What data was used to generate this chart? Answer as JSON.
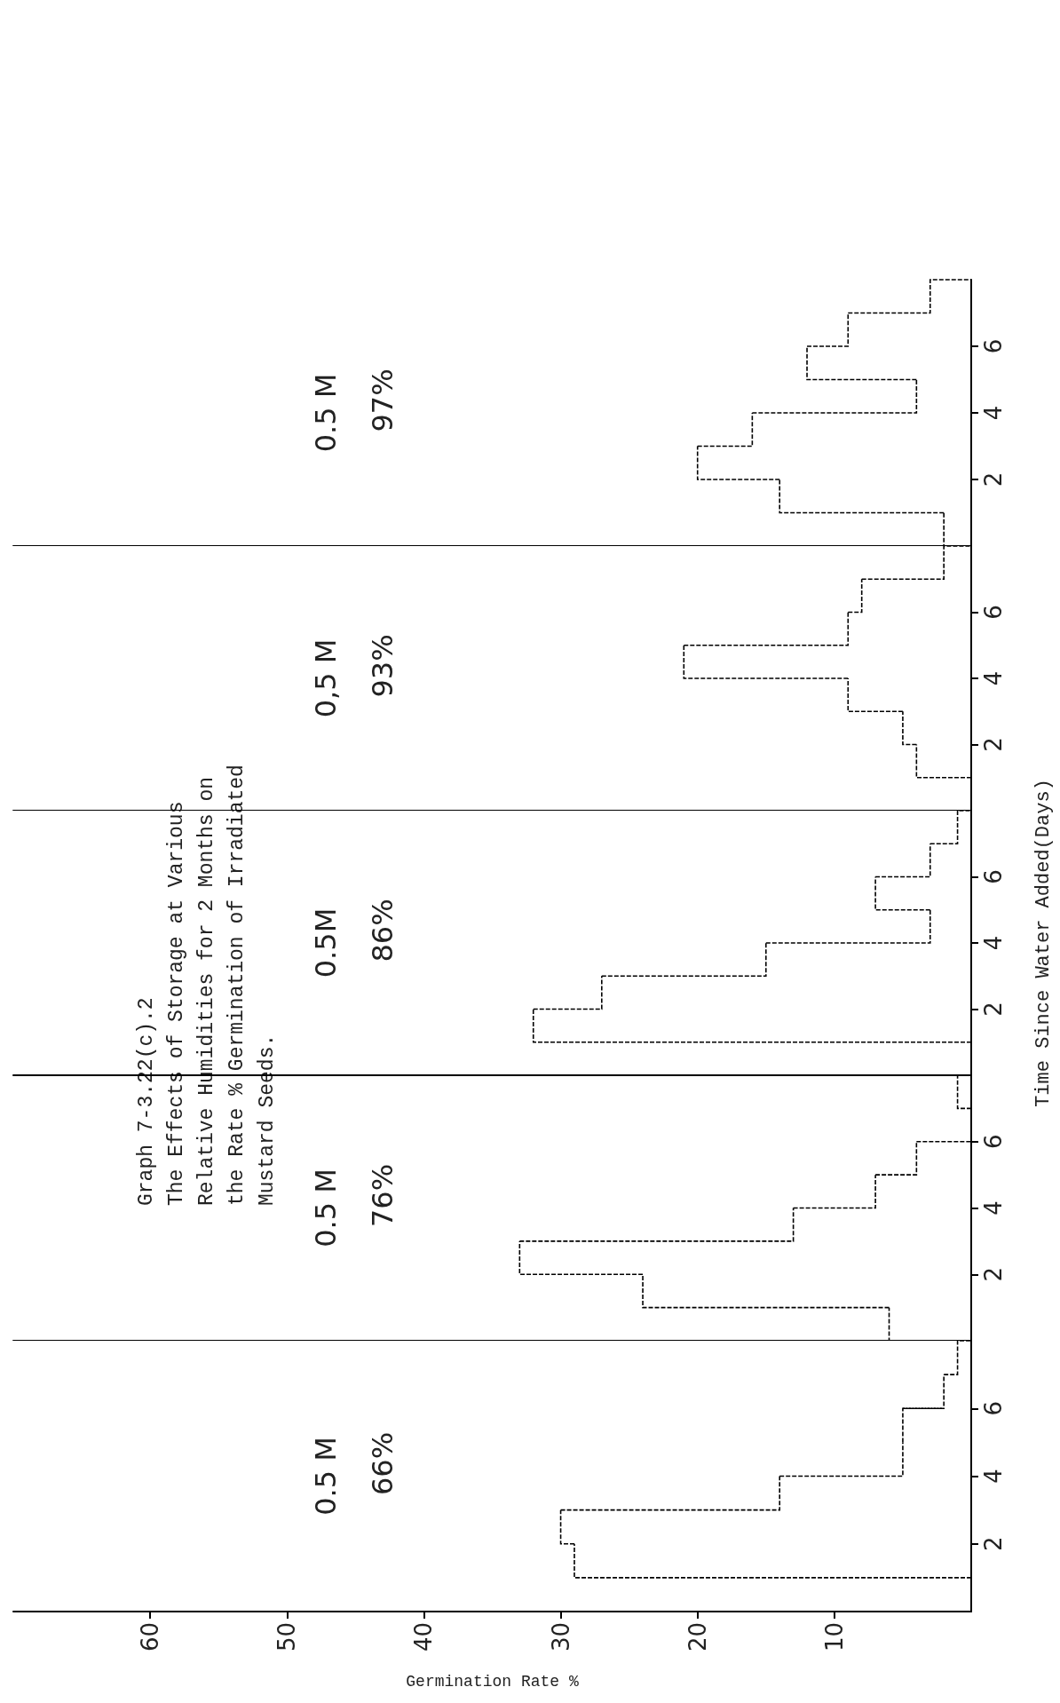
{
  "chart_data": [
    {
      "type": "histogram",
      "orientation": "horizontal",
      "xlabel": "Germination Rate %",
      "annotations": [
        "0.5 M",
        "66%"
      ],
      "bins": [
        1,
        2,
        3,
        4,
        5,
        6,
        7,
        8
      ],
      "values": [
        29,
        30,
        14,
        5,
        5,
        2,
        1
      ],
      "color": "#000000",
      "ylim": [
        0,
        8
      ],
      "yticks": [
        2,
        4,
        6
      ],
      "xlim": [
        70,
        0
      ],
      "xticks": [
        10,
        20,
        30,
        40,
        50,
        60
      ]
    },
    {
      "type": "histogram",
      "orientation": "horizontal",
      "title": "Graph 7-3.22(c).2\nThe Effects of Storage at Various\nRelative Humidities for 2 Months on\nthe Rate % Germination of Irradiated\nMustard Seeds.",
      "annotations": [
        "0.5 M",
        "76%"
      ],
      "bins": [
        0,
        1,
        2,
        3,
        4,
        5,
        6,
        7,
        8
      ],
      "values": [
        6,
        24,
        33,
        13,
        7,
        4,
        0,
        1
      ],
      "color": "#000000",
      "ylim": [
        0,
        8
      ],
      "yticks": [
        2,
        4,
        6
      ],
      "xlim": [
        70,
        0
      ],
      "xticks": [
        10,
        20,
        30,
        40,
        50,
        60
      ],
      "tick_labels": "y"
    },
    {
      "type": "histogram",
      "orientation": "horizontal",
      "ylabel": "Time Since Water Added(Days)",
      "annotations": [
        "0.5M",
        "86%"
      ],
      "bins": [
        1,
        2,
        3,
        4,
        5,
        6,
        7,
        8
      ],
      "values": [
        32,
        27,
        15,
        3,
        7,
        3,
        1
      ],
      "color": "#000000",
      "ylim": [
        0,
        8
      ],
      "yticks": [
        2,
        4,
        6
      ],
      "xlim": [
        70,
        0
      ],
      "xticks": [
        10,
        20,
        30,
        40,
        50,
        60
      ],
      "tick_labels": "y"
    },
    {
      "type": "histogram",
      "orientation": "horizontal",
      "annotations": [
        "0,5 M",
        "93%"
      ],
      "bins": [
        1,
        2,
        3,
        4,
        5,
        6,
        7,
        8
      ],
      "values": [
        4,
        5,
        9,
        21,
        9,
        8,
        2
      ],
      "color": "#000000",
      "ylim": [
        0,
        8
      ],
      "yticks": [
        2,
        4,
        6
      ],
      "xlim": [
        70,
        0
      ],
      "xticks": [
        10,
        20,
        30,
        40,
        50,
        60
      ],
      "tick_labels": "y"
    },
    {
      "type": "histogram",
      "orientation": "horizontal",
      "annotations": [
        "0.5 M",
        "97%"
      ],
      "bins": [
        0,
        1,
        2,
        3,
        4,
        5,
        6,
        7,
        8
      ],
      "values": [
        2,
        14,
        20,
        16,
        4,
        12,
        9,
        3
      ],
      "color": "#000000",
      "ylim": [
        0,
        8
      ],
      "yticks": [
        2,
        4,
        6
      ],
      "xlim": [
        70,
        0
      ],
      "xticks": [
        10,
        20,
        30,
        40,
        50,
        60
      ],
      "tick_labels": "y"
    }
  ]
}
